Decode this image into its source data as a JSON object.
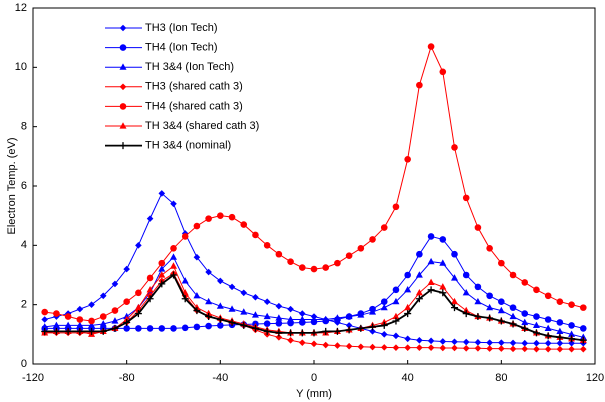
{
  "chart_data": {
    "type": "line",
    "x_label": "Y (mm)",
    "y_label": "Electron Temp. (eV)",
    "x": [
      -115,
      -110,
      -105,
      -100,
      -95,
      -90,
      -85,
      -80,
      -75,
      -70,
      -65,
      -60,
      -55,
      -50,
      -45,
      -40,
      -35,
      -30,
      -25,
      -20,
      -15,
      -10,
      -5,
      0,
      5,
      10,
      15,
      20,
      25,
      30,
      35,
      40,
      45,
      50,
      55,
      60,
      65,
      70,
      75,
      80,
      85,
      90,
      95,
      100,
      105,
      110,
      115
    ],
    "xlim": [
      -120,
      120
    ],
    "xticks": [
      -120,
      -80,
      -40,
      0,
      40,
      80,
      120
    ],
    "ylim": [
      0,
      12
    ],
    "yticks": [
      0,
      2,
      4,
      6,
      8,
      10,
      12
    ],
    "grid": false,
    "legend": "upper-left",
    "series": [
      {
        "name": "TH3 (Ion Tech)",
        "color": "#0000ff",
        "marker": "diamond",
        "values": [
          1.5,
          1.6,
          1.7,
          1.85,
          2.0,
          2.3,
          2.7,
          3.2,
          4.0,
          4.9,
          5.75,
          5.4,
          4.4,
          3.6,
          3.1,
          2.8,
          2.6,
          2.4,
          2.25,
          2.1,
          1.95,
          1.85,
          1.7,
          1.6,
          1.5,
          1.4,
          1.3,
          1.2,
          1.1,
          1.0,
          0.95,
          0.85,
          0.8,
          0.78,
          0.76,
          0.75,
          0.74,
          0.73,
          0.72,
          0.72,
          0.71,
          0.7,
          0.7,
          0.7,
          0.7,
          0.7,
          0.7
        ]
      },
      {
        "name": "TH4 (Ion Tech)",
        "color": "#0000ff",
        "marker": "circle",
        "values": [
          1.2,
          1.2,
          1.2,
          1.2,
          1.2,
          1.2,
          1.2,
          1.2,
          1.2,
          1.2,
          1.2,
          1.2,
          1.22,
          1.25,
          1.28,
          1.3,
          1.32,
          1.33,
          1.35,
          1.36,
          1.37,
          1.38,
          1.4,
          1.42,
          1.45,
          1.5,
          1.6,
          1.7,
          1.85,
          2.1,
          2.5,
          3.0,
          3.7,
          4.3,
          4.2,
          3.7,
          3.0,
          2.6,
          2.3,
          2.1,
          1.9,
          1.7,
          1.6,
          1.5,
          1.4,
          1.3,
          1.2
        ]
      },
      {
        "name": "TH 3&4 (Ion Tech)",
        "color": "#0000ff",
        "marker": "triangle",
        "values": [
          1.25,
          1.3,
          1.3,
          1.3,
          1.3,
          1.35,
          1.45,
          1.6,
          1.9,
          2.4,
          3.2,
          3.6,
          2.8,
          2.3,
          2.1,
          1.95,
          1.85,
          1.75,
          1.65,
          1.6,
          1.55,
          1.5,
          1.5,
          1.5,
          1.5,
          1.55,
          1.6,
          1.65,
          1.75,
          1.9,
          2.1,
          2.5,
          3.0,
          3.45,
          3.4,
          2.9,
          2.4,
          2.1,
          1.9,
          1.8,
          1.6,
          1.4,
          1.3,
          1.2,
          1.1,
          1.0,
          0.9
        ]
      },
      {
        "name": "TH3 (shared cath 3)",
        "color": "#ff0000",
        "marker": "diamond",
        "values": [
          1.05,
          1.05,
          1.05,
          1.05,
          1.05,
          1.1,
          1.2,
          1.4,
          1.8,
          2.3,
          2.8,
          3.05,
          2.3,
          1.8,
          1.6,
          1.5,
          1.4,
          1.3,
          1.15,
          1.0,
          0.9,
          0.8,
          0.72,
          0.68,
          0.64,
          0.62,
          0.6,
          0.58,
          0.57,
          0.56,
          0.55,
          0.55,
          0.55,
          0.55,
          0.54,
          0.54,
          0.53,
          0.53,
          0.52,
          0.52,
          0.51,
          0.51,
          0.5,
          0.5,
          0.5,
          0.5,
          0.5
        ]
      },
      {
        "name": "TH4 (shared cath 3)",
        "color": "#ff0000",
        "marker": "circle",
        "values": [
          1.75,
          1.7,
          1.6,
          1.5,
          1.45,
          1.6,
          1.8,
          2.1,
          2.4,
          2.9,
          3.4,
          3.9,
          4.3,
          4.65,
          4.9,
          5.0,
          4.95,
          4.7,
          4.35,
          4.0,
          3.7,
          3.45,
          3.25,
          3.2,
          3.25,
          3.4,
          3.65,
          3.9,
          4.2,
          4.6,
          5.3,
          6.9,
          9.4,
          10.7,
          9.85,
          7.3,
          5.6,
          4.6,
          3.9,
          3.4,
          3.0,
          2.75,
          2.5,
          2.3,
          2.1,
          2.0,
          1.9
        ]
      },
      {
        "name": "TH 3&4 (shared cath 3)",
        "color": "#ff0000",
        "marker": "triangle",
        "values": [
          1.05,
          1.1,
          1.1,
          1.1,
          1.0,
          1.1,
          1.2,
          1.5,
          1.9,
          2.5,
          3.0,
          3.3,
          2.4,
          1.9,
          1.7,
          1.55,
          1.45,
          1.35,
          1.25,
          1.15,
          1.1,
          1.05,
          1.05,
          1.05,
          1.05,
          1.1,
          1.15,
          1.2,
          1.3,
          1.4,
          1.6,
          1.9,
          2.4,
          2.75,
          2.6,
          2.1,
          1.8,
          1.6,
          1.55,
          1.45,
          1.35,
          1.2,
          1.05,
          0.95,
          0.9,
          0.85,
          0.8
        ]
      },
      {
        "name": "TH 3&4 (nominal)",
        "color": "#000000",
        "marker": "plus",
        "values": [
          1.1,
          1.1,
          1.1,
          1.1,
          1.1,
          1.1,
          1.2,
          1.4,
          1.7,
          2.2,
          2.7,
          3.0,
          2.2,
          1.8,
          1.6,
          1.5,
          1.4,
          1.3,
          1.2,
          1.1,
          1.05,
          1.05,
          1.05,
          1.05,
          1.1,
          1.1,
          1.15,
          1.2,
          1.25,
          1.3,
          1.45,
          1.7,
          2.2,
          2.5,
          2.4,
          1.9,
          1.7,
          1.6,
          1.55,
          1.45,
          1.35,
          1.2,
          1.05,
          0.95,
          0.9,
          0.85,
          0.8
        ]
      }
    ]
  }
}
